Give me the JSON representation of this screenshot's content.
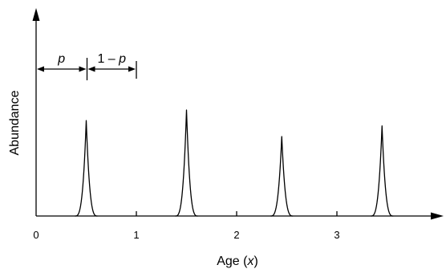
{
  "chart_data": {
    "type": "line",
    "xlabel_text": "Age (",
    "xlabel_var": "x",
    "xlabel_close": ")",
    "ylabel": "Abundance",
    "xlim": [
      0,
      4.0
    ],
    "ylim": [
      0,
      1.0
    ],
    "x_ticks": [
      0,
      1,
      2,
      3
    ],
    "x_tick_labels": [
      "0",
      "1",
      "2",
      "3"
    ],
    "grid": false,
    "series": [
      {
        "peaks": [
          {
            "x": 0.5,
            "height": 0.54
          },
          {
            "x": 1.5,
            "height": 0.6
          },
          {
            "x": 2.45,
            "height": 0.45
          },
          {
            "x": 3.45,
            "height": 0.51
          }
        ]
      }
    ],
    "annotations": {
      "p_label": "p",
      "one_minus_p_prefix": "1 – ",
      "one_minus_p_var": "p",
      "bracket_start_x": 0,
      "bracket_mid_x": 0.5,
      "bracket_end_x": 1
    }
  },
  "colors": {
    "line": "#000000",
    "background": "#ffffff"
  }
}
